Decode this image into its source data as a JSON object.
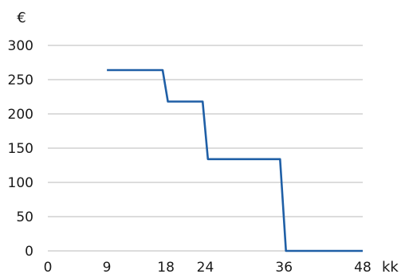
{
  "chart_data": {
    "type": "line",
    "title": "",
    "xlabel": "kk",
    "ylabel": "€",
    "xlim": [
      0,
      48
    ],
    "ylim": [
      0,
      300
    ],
    "x_ticks": [
      0,
      9,
      18,
      24,
      36,
      48
    ],
    "y_ticks": [
      0,
      50,
      100,
      150,
      200,
      250,
      300
    ],
    "grid": "horizontal",
    "legend": "none",
    "series": [
      {
        "color": "#1f5fa6",
        "points": [
          [
            9,
            264
          ],
          [
            17.5,
            264
          ],
          [
            18.3,
            218
          ],
          [
            23.6,
            218
          ],
          [
            24.4,
            134
          ],
          [
            35.4,
            134
          ],
          [
            36.3,
            0
          ],
          [
            48,
            0
          ]
        ]
      }
    ]
  }
}
